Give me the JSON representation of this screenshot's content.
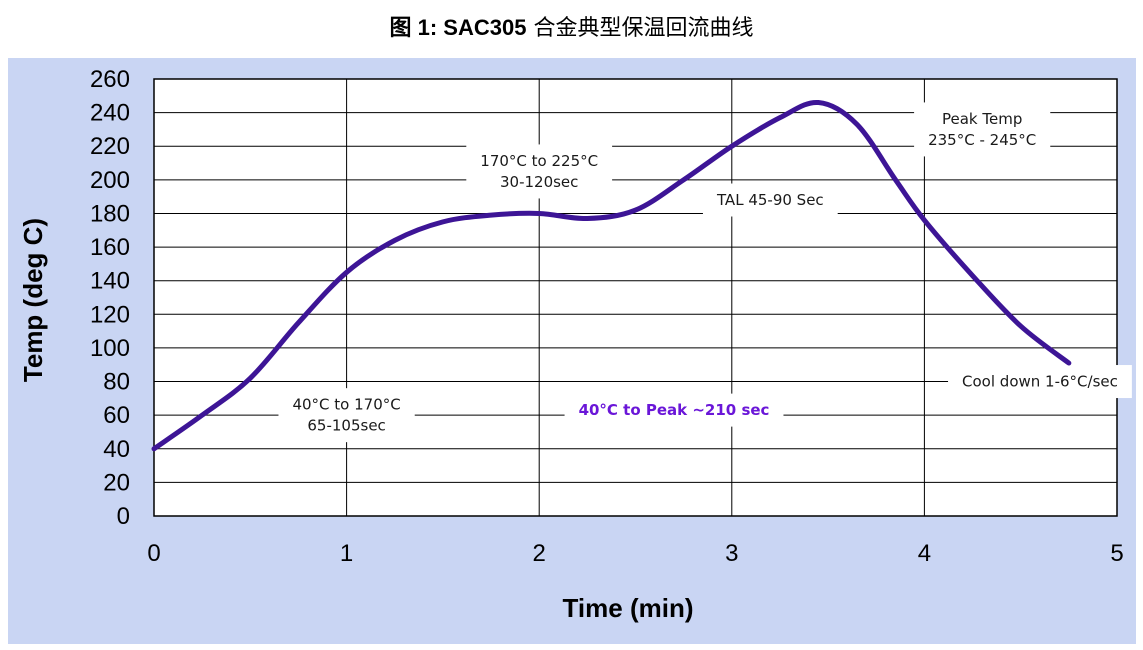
{
  "title": {
    "prefix": "图 1: SAC305",
    "rest": "合金典型保温回流曲线"
  },
  "chart_data": {
    "type": "line",
    "xlabel": "Time (min)",
    "ylabel": "Temp (deg C)",
    "xlim": [
      0,
      5
    ],
    "ylim": [
      0,
      260
    ],
    "xticks": [
      0,
      1,
      2,
      3,
      4,
      5
    ],
    "yticks": [
      0,
      20,
      40,
      60,
      80,
      100,
      120,
      140,
      160,
      180,
      200,
      220,
      240,
      260
    ],
    "grid": true,
    "series": [
      {
        "color": "#3d1596",
        "x": [
          0,
          0.25,
          0.5,
          0.75,
          1.0,
          1.25,
          1.5,
          1.75,
          2.0,
          2.25,
          2.5,
          2.75,
          3.0,
          3.25,
          3.45,
          3.65,
          3.85,
          4.0,
          4.25,
          4.5,
          4.75
        ],
        "y": [
          40,
          60,
          82,
          115,
          145,
          164,
          175,
          179,
          180,
          177,
          182,
          200,
          220,
          237,
          246,
          233,
          200,
          176,
          143,
          113,
          91
        ]
      }
    ],
    "annotations": [
      {
        "lines": [
          "Peak Temp",
          "235°C - 245°C"
        ],
        "x": 4.3,
        "y": 230,
        "style": "box"
      },
      {
        "lines": [
          "170°C to 225°C",
          "30-120sec"
        ],
        "x": 2.0,
        "y": 205,
        "style": "box"
      },
      {
        "lines": [
          "TAL 45-90 Sec"
        ],
        "x": 3.2,
        "y": 188,
        "style": "box"
      },
      {
        "lines": [
          "40°C to 170°C",
          "65-105sec"
        ],
        "x": 1.0,
        "y": 60,
        "style": "box"
      },
      {
        "lines": [
          "40°C to Peak ~210 sec"
        ],
        "x": 2.7,
        "y": 63,
        "style": "purple"
      },
      {
        "lines": [
          "Cool down 1-6°C/sec"
        ],
        "x": 4.6,
        "y": 80,
        "style": "box"
      }
    ]
  }
}
